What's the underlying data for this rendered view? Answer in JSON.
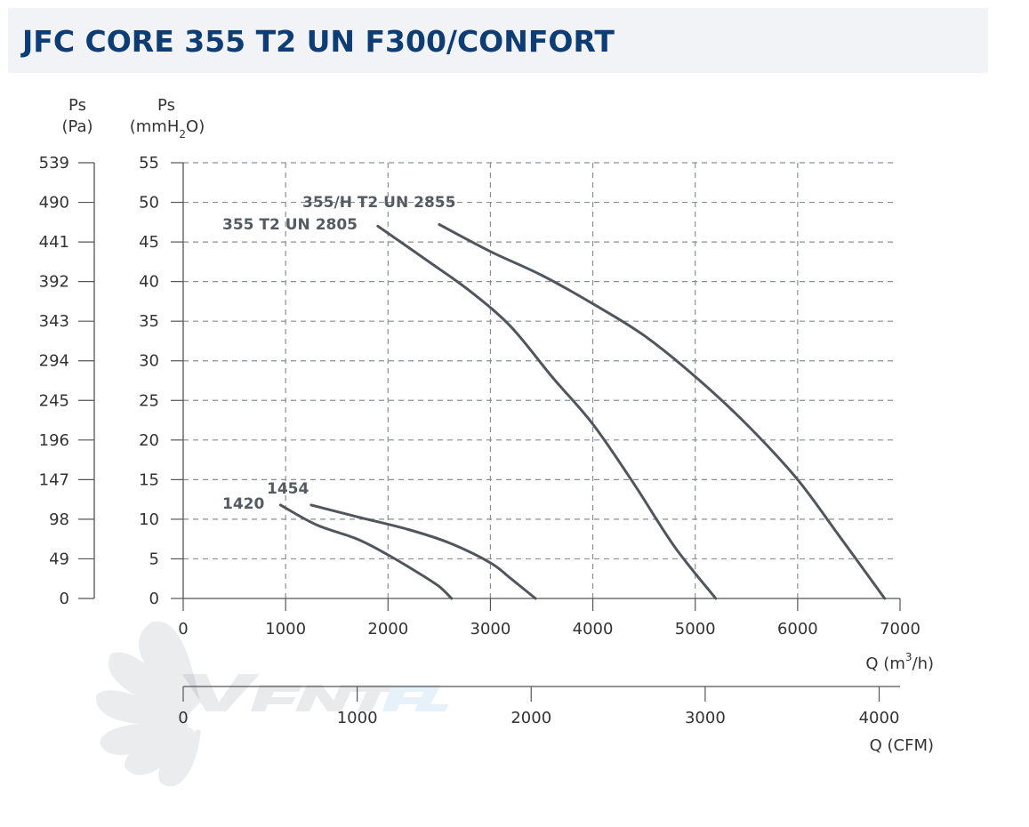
{
  "header": {
    "title": "JFC CORE 355 T2 UN F300/CONFORT"
  },
  "chart_data": {
    "type": "line",
    "title": "JFC CORE 355 T2 UN F300/CONFORT",
    "x_axis": {
      "label_text": "Q (m",
      "label_sup": "3",
      "label_tail": "/h)",
      "range": [
        0,
        7000
      ],
      "ticks": [
        "0",
        "1000",
        "2000",
        "3000",
        "4000",
        "5000",
        "6000",
        "7000"
      ]
    },
    "x2_axis": {
      "label": "Q (CFM)",
      "ticks": [
        "0",
        "1000",
        "2000",
        "3000",
        "4000"
      ]
    },
    "y_axis": {
      "label": "Ps",
      "unit_head": "(mmH",
      "unit_sub": "2",
      "unit_tail": "O)",
      "range": [
        0,
        55
      ],
      "ticks": [
        "0",
        "5",
        "10",
        "15",
        "20",
        "25",
        "30",
        "35",
        "40",
        "45",
        "50",
        "55"
      ]
    },
    "y2_axis": {
      "label": "Ps",
      "unit": "(Pa)",
      "ticks": [
        "0",
        "49",
        "98",
        "147",
        "196",
        "245",
        "294",
        "343",
        "392",
        "441",
        "490",
        "539"
      ]
    },
    "grid": true,
    "series": [
      {
        "name": "355/H T2 UN 2855",
        "x": [
          2500,
          3000,
          3500,
          4000,
          4500,
          5000,
          5500,
          6000,
          6400,
          6850
        ],
        "y": [
          47.2,
          43.8,
          40.8,
          37.2,
          33.2,
          28.0,
          22.0,
          15.0,
          8.0,
          0
        ]
      },
      {
        "name": "355 T2 UN 2805",
        "x": [
          1900,
          2400,
          2800,
          3200,
          3600,
          4000,
          4400,
          4800,
          5200
        ],
        "y": [
          47.0,
          42.5,
          38.8,
          34.3,
          28.0,
          22.0,
          14.5,
          6.5,
          0
        ]
      },
      {
        "name": "1454",
        "x": [
          1250,
          1700,
          2200,
          2600,
          3000,
          3200,
          3440
        ],
        "y": [
          11.8,
          10.3,
          8.7,
          7.0,
          4.5,
          2.5,
          0
        ]
      },
      {
        "name": "1420",
        "x": [
          950,
          1300,
          1700,
          2000,
          2300,
          2500,
          2620
        ],
        "y": [
          11.8,
          9.3,
          7.5,
          5.5,
          3.2,
          1.5,
          0
        ]
      }
    ]
  }
}
